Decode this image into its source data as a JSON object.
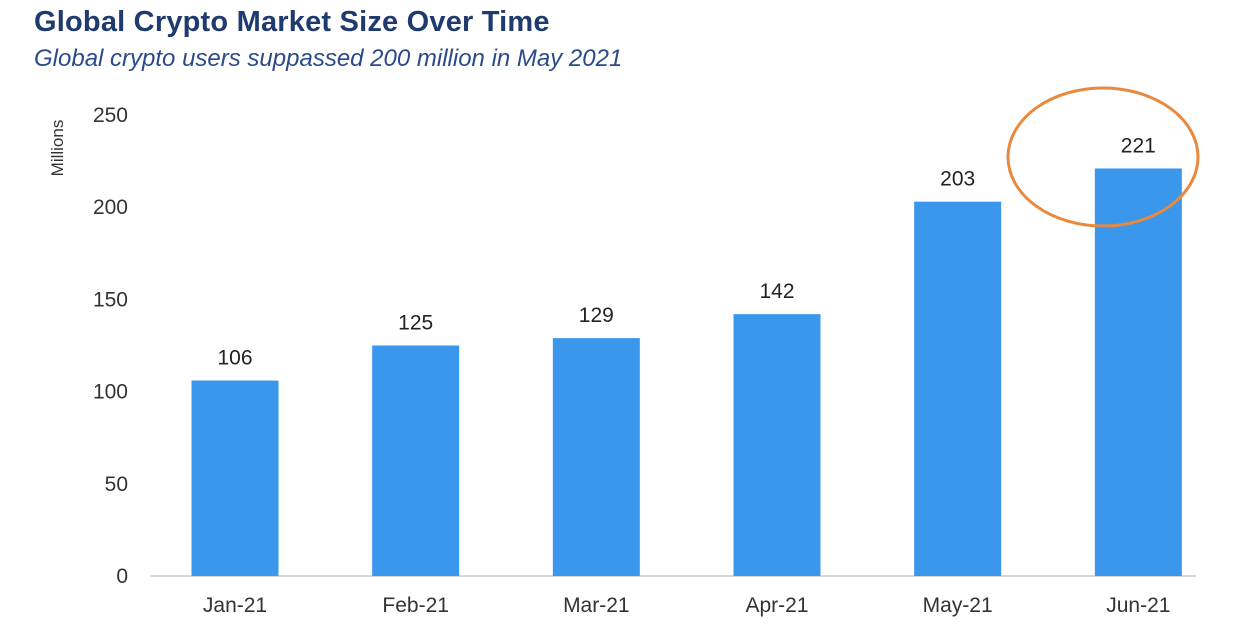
{
  "chart_data": {
    "type": "bar",
    "title": "Global Crypto Market Size Over Time",
    "subtitle": "Global crypto users suppassed 200 million in May 2021",
    "xlabel": "",
    "ylabel": "Millions",
    "categories": [
      "Jan-21",
      "Feb-21",
      "Mar-21",
      "Apr-21",
      "May-21",
      "Jun-21"
    ],
    "values": [
      106,
      125,
      129,
      142,
      203,
      221
    ],
    "data_labels": [
      "106",
      "125",
      "129",
      "142",
      "203",
      "221"
    ],
    "yticks": [
      0,
      50,
      100,
      150,
      200,
      250
    ],
    "ylim": [
      0,
      250
    ],
    "grid": false,
    "legend": "none",
    "highlighted_category": "Jun-21",
    "colors": {
      "bar": "#3a97ec",
      "highlight_circle": "#e8893d",
      "title": "#1f3a6e",
      "subtitle": "#2b4a8a",
      "baseline": "#cccccc"
    }
  }
}
